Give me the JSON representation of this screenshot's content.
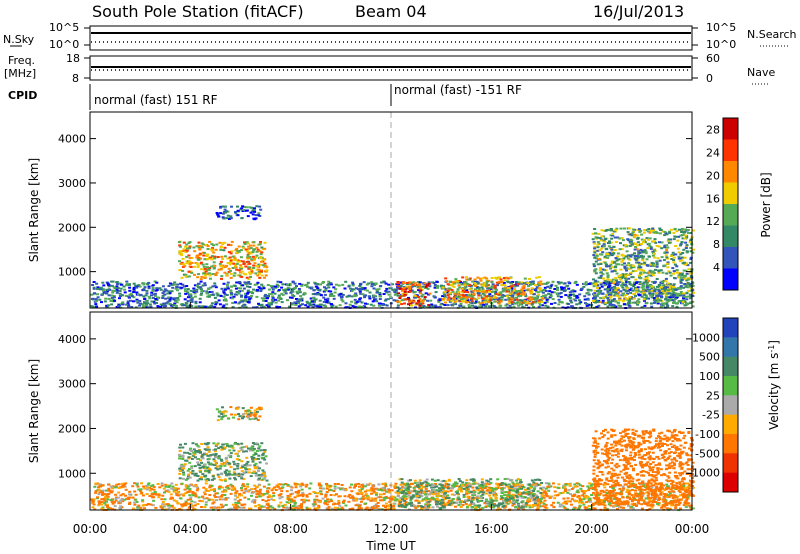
{
  "header": {
    "station": "South Pole Station (fitACF)",
    "beam": "Beam 04",
    "date": "16/Jul/2013"
  },
  "params": {
    "nsky_label": "N.Sky",
    "nsky_ticks": [
      "10^5",
      "10^0"
    ],
    "nsearch_label": "N.Search",
    "nsearch_ticks": [
      "10^5",
      "10^0"
    ],
    "freq_label": "Freq.",
    "freq_unit": "[MHz]",
    "freq_ticks": [
      "18",
      "8"
    ],
    "nave_label": "Nave",
    "nave_ticks": [
      "60",
      "0"
    ],
    "cpid_label": "CPID",
    "cpid_segments": [
      "normal (fast) 151 RF",
      "normal (fast) -151 RF"
    ]
  },
  "chart_data": [
    {
      "type": "heatmap",
      "title": "Power",
      "xlabel": "Time UT",
      "ylabel": "Slant Range [km]",
      "x_ticks": [
        "00:00",
        "04:00",
        "08:00",
        "12:00",
        "16:00",
        "20:00",
        "00:00"
      ],
      "xlim_hours": [
        0,
        24
      ],
      "y_ticks": [
        1000,
        2000,
        3000,
        4000
      ],
      "ylim": [
        180,
        4600
      ],
      "colorbar": {
        "label": "Power [dB]",
        "ticks": [
          4,
          8,
          12,
          16,
          20,
          24,
          28
        ],
        "range": [
          0,
          30
        ],
        "colors": [
          "#0000ff",
          "#3355bb",
          "#338866",
          "#55aa55",
          "#eecc00",
          "#ff8800",
          "#ff3300",
          "#cc0000"
        ]
      },
      "echo_regions": [
        {
          "start_hour": 3.5,
          "end_hour": 7.0,
          "range_km": [
            850,
            1700
          ],
          "typical_db": 18
        },
        {
          "start_hour": 5.0,
          "end_hour": 6.8,
          "range_km": [
            2200,
            2500
          ],
          "typical_db": 6
        },
        {
          "start_hour": 0.0,
          "end_hour": 24.0,
          "range_km": [
            200,
            800
          ],
          "typical_db": 8
        },
        {
          "start_hour": 12.2,
          "end_hour": 13.5,
          "range_km": [
            250,
            800
          ],
          "typical_db": 24
        },
        {
          "start_hour": 14.0,
          "end_hour": 18.0,
          "range_km": [
            300,
            900
          ],
          "typical_db": 18
        },
        {
          "start_hour": 20.0,
          "end_hour": 24.0,
          "range_km": [
            300,
            2000
          ],
          "typical_db": 12
        }
      ]
    },
    {
      "type": "heatmap",
      "title": "Velocity",
      "xlabel": "Time UT",
      "ylabel": "Slant Range [km]",
      "x_ticks": [
        "00:00",
        "04:00",
        "08:00",
        "12:00",
        "16:00",
        "20:00",
        "00:00"
      ],
      "xlim_hours": [
        0,
        24
      ],
      "y_ticks": [
        1000,
        2000,
        3000,
        4000
      ],
      "ylim": [
        180,
        4600
      ],
      "colorbar": {
        "label": "Velocity [m s",
        "label_superscript": "-1",
        "label_close": "]",
        "ticks": [
          "1000",
          "500",
          "100",
          "25",
          "-25",
          "-100",
          "-500",
          "-1000"
        ],
        "colors": [
          "#2244bb",
          "#3377aa",
          "#448866",
          "#55bb44",
          "#aaaaaa",
          "#ffaa00",
          "#ff7700",
          "#ee3300",
          "#dd0000"
        ]
      },
      "echo_regions": [
        {
          "start_hour": 3.5,
          "end_hour": 7.0,
          "range_km": [
            850,
            1700
          ],
          "typical_velocity": 100
        },
        {
          "start_hour": 5.0,
          "end_hour": 6.8,
          "range_km": [
            2200,
            2500
          ],
          "typical_velocity": 0
        },
        {
          "start_hour": 0.0,
          "end_hour": 24.0,
          "range_km": [
            200,
            800
          ],
          "typical_velocity": -100
        },
        {
          "start_hour": 12.2,
          "end_hour": 18.0,
          "range_km": [
            250,
            900
          ],
          "typical_velocity": 100
        },
        {
          "start_hour": 20.0,
          "end_hour": 24.0,
          "range_km": [
            300,
            2000
          ],
          "typical_velocity": -300
        }
      ]
    }
  ]
}
